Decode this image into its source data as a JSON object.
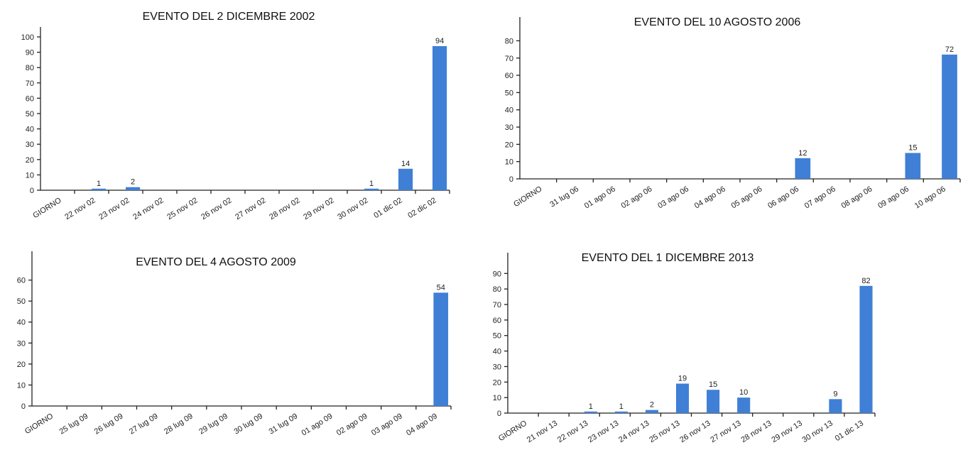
{
  "chart_data": [
    {
      "type": "bar",
      "title": "EVENTO DEL 2 DICEMBRE 2002",
      "categories": [
        "GIORNO",
        "22 nov 02",
        "23 nov 02",
        "24 nov 02",
        "25 nov 02",
        "26 nov 02",
        "27 nov 02",
        "28 nov 02",
        "29 nov 02",
        "30 nov 02",
        "01 dic 02",
        "02 dic 02"
      ],
      "values": [
        0,
        1,
        2,
        0,
        0,
        0,
        0,
        0,
        0,
        1,
        14,
        94
      ],
      "data_labels": [
        "",
        "1",
        "2",
        "",
        "",
        "",
        "",
        "",
        "",
        "1",
        "14",
        "94"
      ],
      "yticks": [
        0,
        10,
        20,
        30,
        40,
        50,
        60,
        70,
        80,
        90,
        100
      ],
      "ylim": [
        0,
        100
      ],
      "xlabel": "",
      "ylabel": "",
      "grid": false,
      "bar_color": "#3f7fd6"
    },
    {
      "type": "bar",
      "title": "EVENTO DEL 10 AGOSTO 2006",
      "categories": [
        "GIORNO",
        "31 lug 06",
        "01 ago 06",
        "02 ago 06",
        "03 ago 06",
        "04 ago 06",
        "05 ago 06",
        "06 ago 06",
        "07 ago 06",
        "08 ago 06",
        "09 ago 06",
        "10 ago 06"
      ],
      "values": [
        0,
        0,
        0,
        0,
        0,
        0,
        0,
        12,
        0,
        0,
        15,
        72
      ],
      "data_labels": [
        "",
        "",
        "",
        "",
        "",
        "",
        "",
        "12",
        "",
        "",
        "15",
        "72"
      ],
      "yticks": [
        0,
        10,
        20,
        30,
        40,
        50,
        60,
        70,
        80
      ],
      "ylim": [
        0,
        88
      ],
      "xlabel": "",
      "ylabel": "",
      "grid": false,
      "bar_color": "#3f7fd6"
    },
    {
      "type": "bar",
      "title": "EVENTO DEL 4 AGOSTO 2009",
      "categories": [
        "GIORNO",
        "25 lug 09",
        "26 lug 09",
        "27 lug 09",
        "28 lug 09",
        "29 lug 09",
        "30 lug 09",
        "31 lug 09",
        "01 ago 09",
        "02 ago 09",
        "03 ago 09",
        "04 ago 09"
      ],
      "values": [
        0,
        0,
        0,
        0,
        0,
        0,
        0,
        0,
        0,
        0,
        0,
        54
      ],
      "data_labels": [
        "",
        "",
        "",
        "",
        "",
        "",
        "",
        "",
        "",
        "",
        "",
        "54"
      ],
      "yticks": [
        0,
        10,
        20,
        30,
        40,
        50,
        60
      ],
      "ylim": [
        0,
        69
      ],
      "xlabel": "",
      "ylabel": "",
      "grid": false,
      "bar_color": "#3f7fd6"
    },
    {
      "type": "bar",
      "title": "EVENTO DEL 1 DICEMBRE 2013",
      "categories": [
        "GIORNO",
        "21 nov 13",
        "22 nov 13",
        "23 nov 13",
        "24 nov 13",
        "25 nov 13",
        "26 nov 13",
        "27 nov 13",
        "28 nov 13",
        "29 nov 13",
        "30 nov 13",
        "01 dic 13"
      ],
      "values": [
        0,
        0,
        1,
        1,
        2,
        19,
        15,
        10,
        0,
        0,
        9,
        82
      ],
      "data_labels": [
        "",
        "",
        "1",
        "1",
        "2",
        "19",
        "15",
        "10",
        "",
        "",
        "9",
        "82"
      ],
      "yticks": [
        0,
        10,
        20,
        30,
        40,
        50,
        60,
        70,
        80,
        90
      ],
      "ylim": [
        0,
        97
      ],
      "xlabel": "",
      "ylabel": "",
      "grid": false,
      "bar_color": "#3f7fd6"
    }
  ]
}
